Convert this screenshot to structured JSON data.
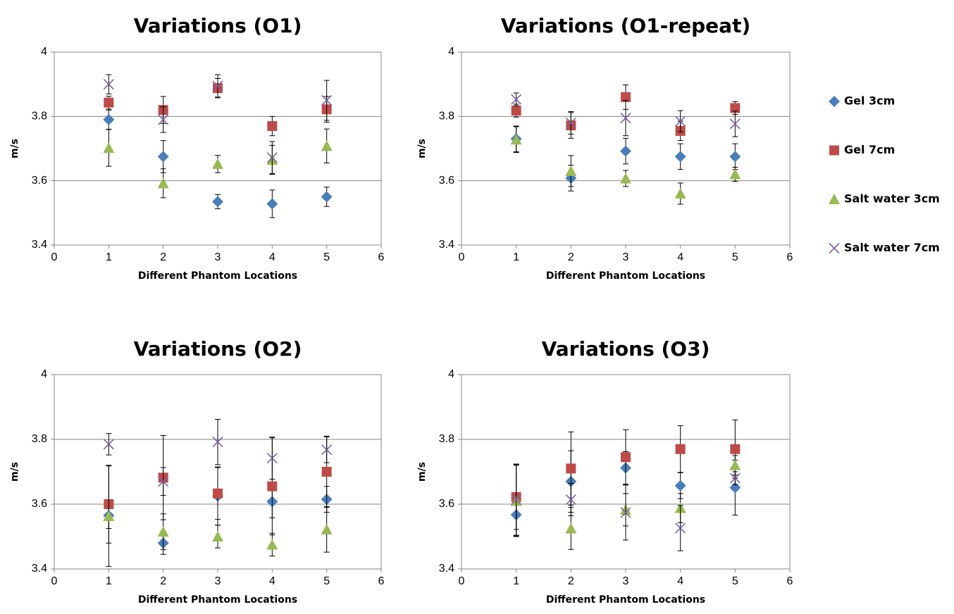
{
  "legend": [
    {
      "name": "Gel 3cm",
      "color": "#4a7ebb",
      "marker": "diamond"
    },
    {
      "name": "Gel 7cm",
      "color": "#be4b48",
      "marker": "square"
    },
    {
      "name": "Salt water 3cm",
      "color": "#98b954",
      "marker": "triangle"
    },
    {
      "name": "Salt water 7cm",
      "color": "#7d60a0",
      "marker": "x"
    }
  ],
  "chart_data": [
    {
      "type": "scatter",
      "title": "Variations (O1)",
      "xlabel": "Different Phantom Locations",
      "ylabel": "m/s",
      "xlim": [
        0,
        6
      ],
      "ylim": [
        3.4,
        4
      ],
      "xticks": [
        "0",
        "1",
        "2",
        "3",
        "4",
        "5",
        "6"
      ],
      "yticks": [
        "3.4",
        "3.6",
        "3.8",
        "4"
      ],
      "grid": "horizontal",
      "x": [
        1,
        2,
        3,
        4,
        5
      ],
      "series": [
        {
          "name": "Gel 3cm",
          "values": [
            3.79,
            3.675,
            3.535,
            3.528,
            3.55
          ],
          "err": [
            0.03,
            0.05,
            0.022,
            0.043,
            0.03
          ]
        },
        {
          "name": "Gel 7cm",
          "values": [
            3.843,
            3.82,
            3.888,
            3.77,
            3.822
          ],
          "err": [
            0.02,
            0.042,
            0.03,
            0.03,
            0.04
          ]
        },
        {
          "name": "Salt water 3cm",
          "values": [
            3.702,
            3.592,
            3.652,
            3.665,
            3.708
          ],
          "err": [
            0.057,
            0.045,
            0.027,
            0.045,
            0.053
          ]
        },
        {
          "name": "Salt water 7cm",
          "values": [
            3.9,
            3.79,
            3.895,
            3.672,
            3.85
          ],
          "err": [
            0.03,
            0.04,
            0.035,
            0.05,
            0.062
          ]
        }
      ]
    },
    {
      "type": "scatter",
      "title": "Variations (O1-repeat)",
      "xlabel": "Different Phantom Locations",
      "ylabel": "m/s",
      "xlim": [
        0,
        6
      ],
      "ylim": [
        3.4,
        4
      ],
      "xticks": [
        "0",
        "1",
        "2",
        "3",
        "4",
        "5",
        "6"
      ],
      "yticks": [
        "3.4",
        "3.6",
        "3.8",
        "4"
      ],
      "grid": "horizontal",
      "x": [
        1,
        2,
        3,
        4,
        5
      ],
      "series": [
        {
          "name": "Gel 3cm",
          "values": [
            3.73,
            3.608,
            3.692,
            3.675,
            3.675
          ],
          "err": [
            0.04,
            0.04,
            0.04,
            0.04,
            0.04
          ]
        },
        {
          "name": "Gel 7cm",
          "values": [
            3.818,
            3.772,
            3.86,
            3.755,
            3.826
          ],
          "err": [
            0.02,
            0.04,
            0.038,
            0.03,
            0.02
          ]
        },
        {
          "name": "Salt water 3cm",
          "values": [
            3.728,
            3.63,
            3.607,
            3.56,
            3.62
          ],
          "err": [
            0.04,
            0.048,
            0.025,
            0.033,
            0.022
          ]
        },
        {
          "name": "Salt water 7cm",
          "values": [
            3.853,
            3.78,
            3.795,
            3.785,
            3.777
          ],
          "err": [
            0.02,
            0.035,
            0.055,
            0.033,
            0.04
          ]
        }
      ]
    },
    {
      "type": "scatter",
      "title": "Variations (O2)",
      "xlabel": "Different Phantom Locations",
      "ylabel": "m/s",
      "xlim": [
        0,
        6
      ],
      "ylim": [
        3.4,
        4
      ],
      "xticks": [
        "0",
        "1",
        "2",
        "3",
        "4",
        "5",
        "6"
      ],
      "yticks": [
        "3.4",
        "3.6",
        "3.8",
        "4"
      ],
      "grid": "horizontal",
      "x": [
        1,
        2,
        3,
        4,
        5
      ],
      "series": [
        {
          "name": "Gel 3cm",
          "values": [
            3.565,
            3.48,
            3.625,
            3.608,
            3.615
          ],
          "err": [
            0.04,
            0.035,
            0.09,
            0.05,
            0.04
          ]
        },
        {
          "name": "Gel 7cm",
          "values": [
            3.6,
            3.682,
            3.633,
            3.655,
            3.7
          ],
          "err": [
            0.12,
            0.13,
            0.08,
            0.15,
            0.11
          ]
        },
        {
          "name": "Salt water 3cm",
          "values": [
            3.563,
            3.515,
            3.5,
            3.475,
            3.522
          ],
          "err": [
            0.155,
            0.055,
            0.035,
            0.035,
            0.07
          ]
        },
        {
          "name": "Salt water 7cm",
          "values": [
            3.785,
            3.67,
            3.792,
            3.742,
            3.768
          ],
          "err": [
            0.033,
            0.043,
            0.07,
            0.065,
            0.04
          ]
        }
      ]
    },
    {
      "type": "scatter",
      "title": "Variations (O3)",
      "xlabel": "Different Phantom Locations",
      "ylabel": "m/s",
      "xlim": [
        0,
        6
      ],
      "ylim": [
        3.4,
        4
      ],
      "xticks": [
        "0",
        "1",
        "2",
        "3",
        "4",
        "5",
        "6"
      ],
      "yticks": [
        "3.4",
        "3.6",
        "3.8",
        "4"
      ],
      "grid": "horizontal",
      "x": [
        1,
        2,
        3,
        4,
        5
      ],
      "series": [
        {
          "name": "Gel 3cm",
          "values": [
            3.567,
            3.67,
            3.712,
            3.657,
            3.651
          ],
          "err": [
            0.065,
            0.095,
            0.05,
            0.04,
            0.085
          ]
        },
        {
          "name": "Gel 7cm",
          "values": [
            3.622,
            3.71,
            3.745,
            3.77,
            3.77
          ],
          "err": [
            0.1,
            0.113,
            0.085,
            0.072,
            0.09
          ]
        },
        {
          "name": "Salt water 3cm",
          "values": [
            3.61,
            3.525,
            3.583,
            3.588,
            3.72
          ],
          "err": [
            0.11,
            0.065,
            0.05,
            0.045,
            0.03
          ]
        },
        {
          "name": "Salt water 7cm",
          "values": [
            3.614,
            3.614,
            3.574,
            3.526,
            3.68
          ],
          "err": [
            0.11,
            0.05,
            0.085,
            0.07,
            0.02
          ]
        }
      ]
    }
  ]
}
